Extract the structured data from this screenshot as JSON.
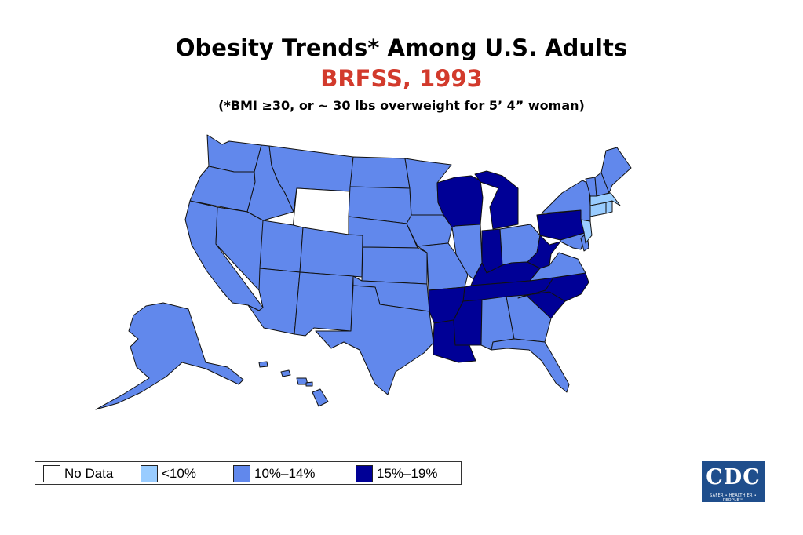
{
  "header": {
    "title": "Obesity Trends* Among U.S. Adults",
    "subtitle": "BRFSS, 1993",
    "note": "(*BMI ≥30, or ~ 30 lbs overweight for 5’ 4” woman)"
  },
  "legend": {
    "items": [
      {
        "label": "No Data",
        "color": "#ffffff"
      },
      {
        "label": "<10%",
        "color": "#99ccff"
      },
      {
        "label": "10%–14%",
        "color": "#6188ec"
      },
      {
        "label": "15%–19%",
        "color": "#000096"
      }
    ]
  },
  "logo": {
    "text": "CDC",
    "tagline": "SAFER • HEALTHIER • PEOPLE™"
  },
  "map_data": {
    "category_colors": {
      "no_data": "#ffffff",
      "lt10": "#99ccff",
      "10_14": "#6188ec",
      "15_19": "#000096"
    },
    "states": {
      "no_data": [
        "WY"
      ],
      "lt10": [
        "MA",
        "NJ",
        "CT",
        "RI"
      ],
      "15_19": [
        "WI",
        "MI",
        "IN",
        "KY",
        "WV",
        "PA",
        "TN",
        "NC",
        "SC",
        "AR",
        "LA",
        "MS"
      ],
      "10_14": [
        "WA",
        "OR",
        "CA",
        "ID",
        "NV",
        "MT",
        "UT",
        "AZ",
        "CO",
        "NM",
        "ND",
        "SD",
        "NE",
        "KS",
        "OK",
        "TX",
        "MN",
        "IA",
        "MO",
        "IL",
        "OH",
        "AL",
        "GA",
        "FL",
        "VA",
        "MD",
        "DE",
        "NY",
        "VT",
        "NH",
        "ME",
        "AK",
        "HI"
      ]
    }
  }
}
